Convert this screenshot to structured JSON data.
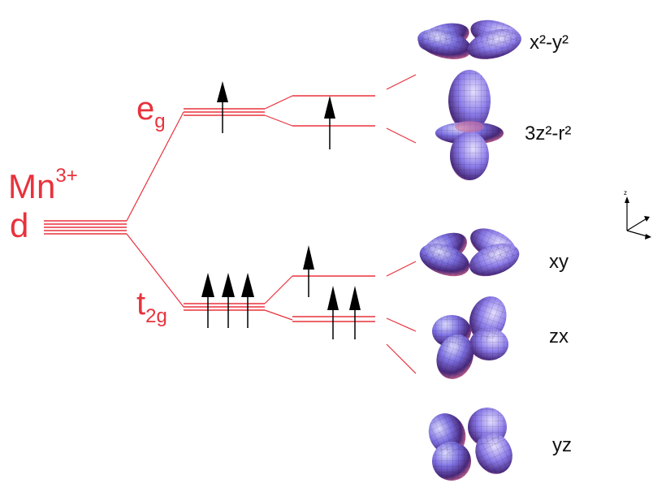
{
  "ion": {
    "element": "Mn",
    "charge": "3+",
    "orbital": "d"
  },
  "levels": {
    "eg": {
      "main": "e",
      "sub": "g"
    },
    "t2g": {
      "main": "t",
      "sub": "2g"
    }
  },
  "orbitals": {
    "x2y2": "x²-y²",
    "z2": "3z²-r²",
    "xy": "xy",
    "zx": "zx",
    "yz": "yz"
  },
  "axes": {
    "z": "z"
  },
  "colors": {
    "level_lines": "#e8323c",
    "arrows": "#000000",
    "orbital_light": "#d6d6ff",
    "orbital_mid": "#6a60d0",
    "orbital_dark": "#3d1f6e",
    "orbital_pink": "#c86a9a"
  }
}
